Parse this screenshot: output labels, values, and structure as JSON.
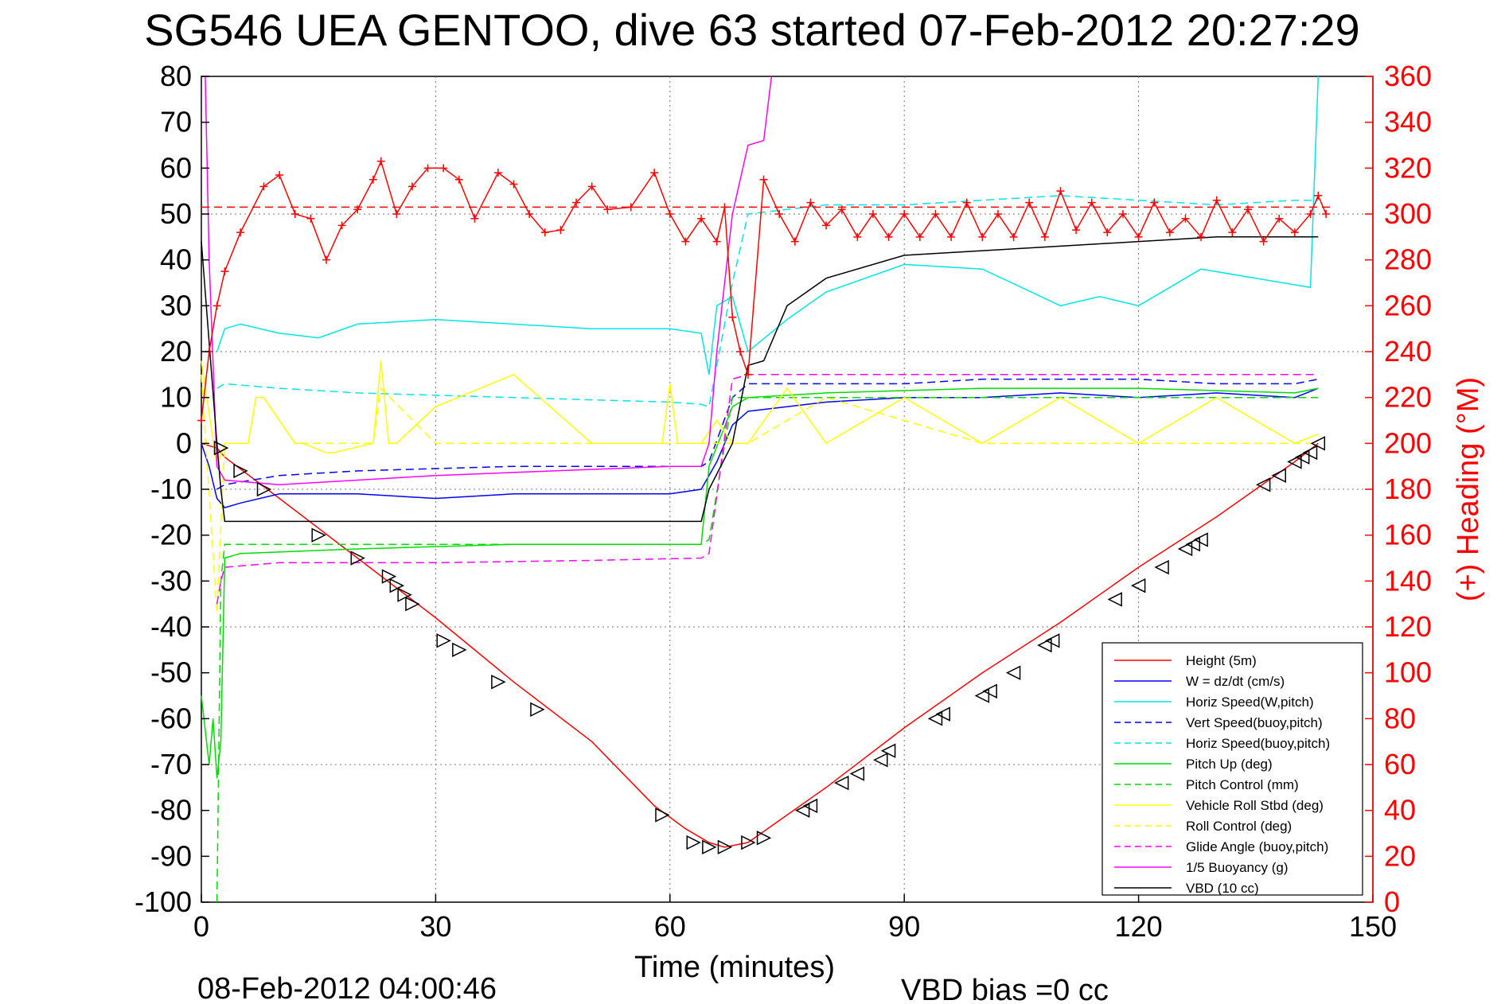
{
  "chart_data": {
    "type": "line",
    "title": "SG546 UEA GENTOO, dive 63 started 07-Feb-2012 20:27:29",
    "xlabel": "Time (minutes)",
    "ylabel_right": "(+) Heading (°M)",
    "footer_left": "08-Feb-2012 04:00:46",
    "footer_right": "VBD bias =0 cc",
    "xlim": [
      0,
      150
    ],
    "ylim_left": [
      -100,
      80
    ],
    "ylim_right": [
      0,
      360
    ],
    "xticks": [
      "0",
      "30",
      "60",
      "90",
      "120",
      "150"
    ],
    "yticks_left": [
      "80",
      "70",
      "60",
      "50",
      "40",
      "30",
      "20",
      "10",
      "0",
      "-10",
      "-20",
      "-30",
      "-40",
      "-50",
      "-60",
      "-70",
      "-80",
      "-90",
      "-100"
    ],
    "yticks_right": [
      "360",
      "340",
      "320",
      "300",
      "280",
      "260",
      "240",
      "220",
      "200",
      "180",
      "160",
      "140",
      "120",
      "100",
      "80",
      "60",
      "40",
      "20",
      "0"
    ],
    "grid": true,
    "legend_position": "bottom-right",
    "colors": {
      "height": "#ff0000",
      "w": "#0000ff",
      "horiz_speed_w": "#00e6e6",
      "vert_speed_buoy": "#0000ff",
      "horiz_speed_buoy": "#00e6e6",
      "pitch_up": "#00dd00",
      "pitch_control": "#00dd00",
      "roll": "#ffff00",
      "roll_control": "#ffff00",
      "glide_angle": "#ff00ff",
      "buoyancy": "#ff00ff",
      "vbd": "#000000",
      "heading": "#ff0000",
      "heading_mean": "#ff0000"
    },
    "series": [
      {
        "name": "Height (5m)",
        "key": "height",
        "style": "solid",
        "x": [
          0,
          2,
          3,
          10,
          20,
          30,
          40,
          50,
          58,
          62,
          65,
          67,
          70,
          80,
          90,
          100,
          110,
          120,
          130,
          140,
          143
        ],
        "y": [
          0,
          -1,
          -3,
          -12,
          -25,
          -38,
          -52,
          -65,
          -79,
          -84,
          -87,
          -88,
          -87,
          -75,
          -62,
          -50,
          -39,
          -27,
          -16,
          -4,
          0
        ]
      },
      {
        "name": "W = dz/dt (cm/s)",
        "key": "w",
        "style": "solid",
        "x": [
          0,
          1,
          2,
          3,
          5,
          10,
          20,
          30,
          40,
          50,
          60,
          64,
          66,
          68,
          70,
          80,
          90,
          100,
          110,
          120,
          130,
          140,
          143
        ],
        "y": [
          0,
          -5,
          -12,
          -14,
          -13,
          -11,
          -11,
          -12,
          -11,
          -11,
          -11,
          -10,
          -4,
          4,
          7,
          9,
          10,
          10,
          11,
          10,
          11,
          10,
          12
        ]
      },
      {
        "name": "Horiz Speed(W,pitch)",
        "key": "horiz_speed_w",
        "style": "solid",
        "x": [
          2,
          3,
          5,
          10,
          15,
          20,
          30,
          40,
          50,
          60,
          64,
          65,
          66,
          68,
          70,
          75,
          80,
          90,
          100,
          110,
          115,
          120,
          128,
          135,
          142,
          143
        ],
        "y": [
          20,
          25,
          26,
          24,
          23,
          26,
          27,
          26,
          25,
          25,
          24,
          15,
          30,
          32,
          20,
          27,
          33,
          39,
          38,
          30,
          32,
          30,
          38,
          36,
          34,
          80
        ]
      },
      {
        "name": "Vert Speed(buoy,pitch)",
        "key": "vert_speed_buoy",
        "style": "dashed",
        "x": [
          2,
          3,
          10,
          20,
          30,
          40,
          50,
          60,
          64,
          65,
          68,
          70,
          80,
          90,
          100,
          110,
          120,
          130,
          140,
          143
        ],
        "y": [
          -10,
          -9,
          -7,
          -6,
          -5.5,
          -5,
          -5,
          -5,
          -5,
          -4,
          10,
          13,
          13,
          13,
          14,
          14,
          14,
          13,
          13,
          14
        ]
      },
      {
        "name": "Horiz Speed(buoy,pitch)",
        "key": "horiz_speed_buoy",
        "style": "dashed",
        "x": [
          2,
          3,
          10,
          20,
          30,
          40,
          50,
          60,
          64,
          65,
          68,
          70,
          80,
          90,
          100,
          110,
          120,
          130,
          140,
          143
        ],
        "y": [
          12,
          13,
          12,
          11,
          10.5,
          10,
          9.5,
          9,
          8.5,
          8,
          35,
          50,
          52,
          52,
          53,
          54,
          53,
          52,
          53,
          53
        ]
      },
      {
        "name": "Pitch Up (deg)",
        "key": "pitch_up",
        "style": "solid",
        "x": [
          0,
          1,
          1.5,
          2,
          2.5,
          3,
          5,
          20,
          40,
          60,
          64,
          65,
          68,
          70,
          80,
          100,
          120,
          140,
          143
        ],
        "y": [
          -55,
          -70,
          -60,
          -73,
          -65,
          -25,
          -24,
          -23,
          -22,
          -22,
          -22,
          -5,
          8,
          10,
          11,
          12,
          12,
          11,
          12
        ]
      },
      {
        "name": "Pitch Control (mm)",
        "key": "pitch_control",
        "style": "dashed",
        "x": [
          2,
          2.5,
          3,
          60,
          64,
          65,
          68,
          70,
          100,
          143
        ],
        "y": [
          -100,
          -30,
          -22,
          -22,
          -22,
          -21,
          10,
          10,
          10,
          10
        ]
      },
      {
        "name": "Vehicle Roll Stbd (deg)",
        "key": "roll",
        "style": "solid",
        "x": [
          0,
          2,
          3,
          6,
          7,
          8,
          12,
          13,
          16,
          17,
          22,
          23,
          24,
          25,
          30,
          40,
          50,
          59,
          60,
          61,
          64,
          66,
          68,
          70,
          75,
          80,
          90,
          100,
          110,
          120,
          130,
          140,
          143
        ],
        "y": [
          18,
          -5,
          0,
          0,
          10,
          10,
          0,
          0,
          -2,
          -2,
          0,
          18,
          0,
          0,
          8,
          15,
          0,
          0,
          13,
          0,
          0,
          5,
          0,
          0,
          12,
          0,
          10,
          0,
          10,
          0,
          10,
          0,
          2
        ]
      },
      {
        "name": "Roll Control (deg)",
        "key": "roll_control",
        "style": "dashed",
        "x": [
          0,
          2,
          3,
          6,
          7,
          8,
          12,
          13,
          22,
          23,
          30,
          60,
          65,
          70,
          80,
          100,
          143
        ],
        "y": [
          15,
          -37,
          0,
          0,
          10,
          10,
          0,
          0,
          0,
          12,
          0,
          0,
          0,
          0,
          10,
          0,
          0
        ]
      },
      {
        "name": "Glide Angle (buoy,pitch)",
        "key": "glide_angle",
        "style": "dashed",
        "x": [
          2,
          2.5,
          3,
          10,
          30,
          50,
          64,
          65,
          68,
          70,
          80,
          100,
          120,
          143
        ],
        "y": [
          -35,
          -30,
          -27,
          -26,
          -26,
          -25.5,
          -25,
          -24,
          14,
          15,
          15,
          15,
          15,
          15
        ]
      },
      {
        "name": "1/5 Buoyancy (g)",
        "key": "buoyancy",
        "style": "solid",
        "x": [
          0.5,
          1,
          2,
          3,
          10,
          30,
          60,
          64,
          65,
          66,
          68,
          70,
          72,
          73
        ],
        "y": [
          80,
          40,
          -5,
          -8,
          -9,
          -7,
          -5,
          -5,
          0,
          20,
          50,
          65,
          66,
          80
        ]
      },
      {
        "name": "VBD (10 cc)",
        "key": "vbd",
        "style": "solid",
        "x": [
          0,
          2,
          2.5,
          3,
          30,
          60,
          64,
          65,
          68,
          70,
          72,
          75,
          80,
          90,
          100,
          110,
          120,
          130,
          140,
          143
        ],
        "y": [
          44,
          0,
          -10,
          -17,
          -17,
          -17,
          -17,
          -10,
          0,
          17,
          18,
          30,
          36,
          41,
          42,
          43,
          44,
          45,
          45,
          45
        ]
      },
      {
        "name": "",
        "key": "heading",
        "style": "markers-plus",
        "axis": "right",
        "x": [
          0,
          1,
          2,
          3,
          5,
          8,
          10,
          12,
          14,
          16,
          18,
          20,
          22,
          23,
          25,
          27,
          29,
          31,
          33,
          35,
          38,
          40,
          42,
          44,
          46,
          48,
          50,
          52,
          55,
          58,
          60,
          62,
          64,
          66,
          67,
          68,
          69,
          70,
          72,
          74,
          76,
          78,
          80,
          82,
          84,
          86,
          88,
          90,
          92,
          94,
          96,
          98,
          100,
          102,
          104,
          106,
          108,
          110,
          112,
          114,
          116,
          118,
          120,
          122,
          124,
          126,
          128,
          130,
          132,
          134,
          136,
          138,
          140,
          142,
          143,
          144
        ],
        "y": [
          210,
          240,
          260,
          275,
          292,
          312,
          317,
          300,
          298,
          280,
          295,
          302,
          315,
          323,
          300,
          312,
          320,
          320,
          315,
          298,
          318,
          313,
          300,
          292,
          293,
          305,
          312,
          302,
          303,
          318,
          300,
          288,
          298,
          288,
          303,
          255,
          240,
          230,
          315,
          300,
          288,
          305,
          295,
          302,
          290,
          300,
          290,
          300,
          290,
          300,
          290,
          305,
          290,
          300,
          290,
          305,
          290,
          310,
          293,
          305,
          292,
          300,
          290,
          305,
          292,
          298,
          290,
          306,
          292,
          302,
          288,
          298,
          292,
          300,
          308,
          300
        ]
      },
      {
        "name": "",
        "key": "heading_mean",
        "style": "dashed",
        "axis": "right",
        "x": [
          0,
          145
        ],
        "y": [
          303,
          303
        ]
      }
    ],
    "depth_markers": {
      "descent_x": [
        2.5,
        5,
        8,
        15,
        20,
        24,
        25,
        26,
        27,
        31,
        33,
        38,
        43,
        59,
        63,
        65,
        67,
        70,
        72
      ],
      "descent_y": [
        -1,
        -6,
        -10,
        -20,
        -25,
        -29,
        -31,
        -33,
        -35,
        -43,
        -45,
        -52,
        -58,
        -81,
        -87,
        -88,
        -88,
        -87,
        -86
      ],
      "ascent_x": [
        77,
        78,
        82,
        84,
        87,
        88,
        94,
        95,
        100,
        101,
        104,
        108,
        109,
        117,
        120,
        123,
        126,
        127,
        128,
        136,
        138,
        140,
        141,
        142,
        143
      ],
      "ascent_y": [
        -80,
        -79,
        -74,
        -72,
        -69,
        -67,
        -60,
        -59,
        -55,
        -54,
        -50,
        -44,
        -43,
        -34,
        -31,
        -27,
        -23,
        -22,
        -21,
        -9,
        -7,
        -4,
        -3,
        -2,
        0
      ]
    }
  }
}
